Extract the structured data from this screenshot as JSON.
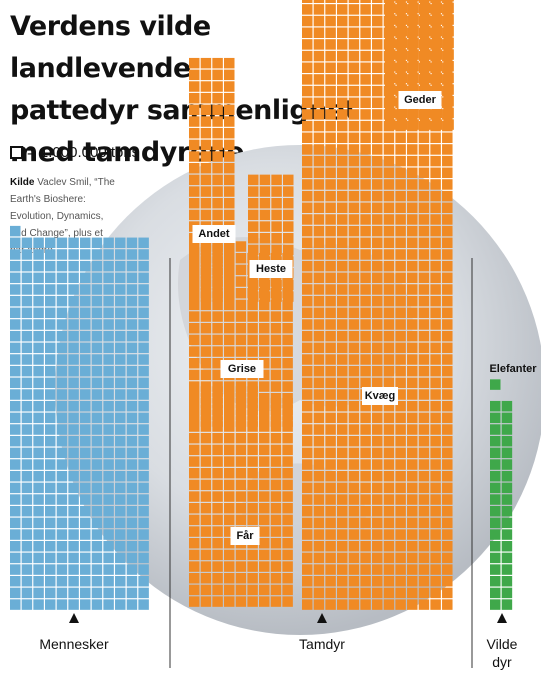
{
  "title_lines": [
    "Verdens vilde landlevende",
    "pattedyr sammenlignet",
    "med tamdyrene"
  ],
  "legend": {
    "text": "= 1.000.000 tons"
  },
  "source": {
    "label": "Kilde",
    "text": "Vaclev Smil, “The Earth's Bioshere: Evolution, Dynamics, and Change”, plus et par andre"
  },
  "chart_data": {
    "type": "waffle",
    "unit": "1.000.000 tons",
    "groups": [
      {
        "name": "Mennesker",
        "color": "#6aaed6",
        "segments": [
          {
            "name": "",
            "value": 385
          }
        ]
      },
      {
        "name": "Tamdyr",
        "color": "#f08a24",
        "segments": [
          {
            "name": "Får",
            "value": 168
          },
          {
            "name": "Grise",
            "value": 140
          },
          {
            "name": "Andet",
            "value": 84
          },
          {
            "name": "Heste",
            "value": 44
          },
          {
            "name": "Kvæg",
            "value": 700
          },
          {
            "name": "Geder",
            "value": 95
          }
        ]
      },
      {
        "name": "Vilde dyr",
        "color": "#3fa84a",
        "segments": [
          {
            "name": "",
            "value": 36
          },
          {
            "name": "Elefanter",
            "value": 1
          }
        ]
      }
    ],
    "group_labels": {
      "humans": "Mennesker",
      "livestock": "Tamdyr",
      "wild_line1": "Vilde",
      "wild_line2": "dyr"
    }
  }
}
